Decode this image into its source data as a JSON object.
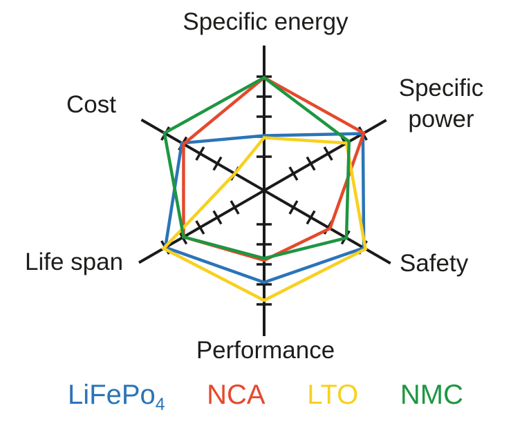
{
  "chart_data": {
    "type": "radar",
    "title": "",
    "axes": [
      "Specific energy",
      "Specific power",
      "Safety",
      "Performance",
      "Life span",
      "Cost"
    ],
    "scale_min": 0,
    "scale_max": 5,
    "axis_tick_values": [
      1,
      2,
      3,
      4,
      5
    ],
    "grid": false,
    "legend_position": "bottom",
    "axis_color": "#1a1a1a",
    "series": [
      {
        "id": "lifepo4",
        "name": "LiFePo4",
        "color": "#2b74b8",
        "values": [
          2.05,
          5.0,
          5.05,
          3.9,
          5.0,
          4.05
        ]
      },
      {
        "id": "nca",
        "name": "NCA",
        "color": "#e5492c",
        "values": [
          4.95,
          5.05,
          3.1,
          2.8,
          3.95,
          3.95
        ]
      },
      {
        "id": "lto",
        "name": "LTO",
        "color": "#f8d01f",
        "values": [
          1.95,
          4.05,
          5.15,
          4.8,
          5.1,
          1.0
        ]
      },
      {
        "id": "nmc",
        "name": "NMC",
        "color": "#1e9641",
        "values": [
          4.95,
          4.2,
          4.05,
          2.7,
          3.95,
          5.05
        ]
      }
    ]
  },
  "labels": {
    "specific_energy": "Specific energy",
    "specific_power_line1": "Specific",
    "specific_power_line2": "power",
    "safety": "Safety",
    "performance": "Performance",
    "life_span": "Life span",
    "cost": "Cost"
  },
  "legend": {
    "items": [
      {
        "base": "LiFePo",
        "sub": "4"
      },
      {
        "base": "NCA",
        "sub": ""
      },
      {
        "base": "LTO",
        "sub": ""
      },
      {
        "base": "NMC",
        "sub": ""
      }
    ]
  }
}
